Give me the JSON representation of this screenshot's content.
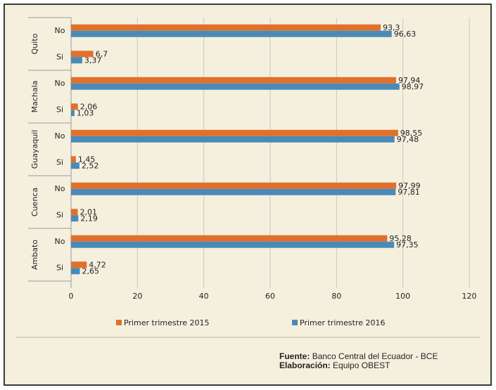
{
  "chart_data": {
    "type": "bar",
    "orientation": "horizontal",
    "groups": [
      "Quito",
      "Machala",
      "Guayaquil",
      "Cuenca",
      "Ambato"
    ],
    "categories": [
      "No",
      "Si",
      "No",
      "Si",
      "No",
      "Si",
      "No",
      "Si",
      "No",
      "Si"
    ],
    "series": [
      {
        "name": "Primer trimestre 2015",
        "color": "#e0702a",
        "values": [
          93.3,
          6.7,
          97.94,
          2.06,
          98.55,
          1.45,
          97.99,
          2.01,
          95.28,
          4.72
        ],
        "value_labels": [
          "93,3",
          "6,7",
          "97,94",
          "2,06",
          "98,55",
          "1,45",
          "97,99",
          "2,01",
          "95,28",
          "4,72"
        ]
      },
      {
        "name": "Primer trimestre 2016",
        "color": "#4a8ab8",
        "values": [
          96.63,
          3.37,
          98.97,
          1.03,
          97.48,
          2.52,
          97.81,
          2.19,
          97.35,
          2.65
        ],
        "value_labels": [
          "96,63",
          "3,37",
          "98,97",
          "1,03",
          "97,48",
          "2,52",
          "97,81",
          "2,19",
          "97,35",
          "2,65"
        ]
      }
    ],
    "xlim": [
      0,
      120
    ],
    "xticks": [
      0,
      20,
      40,
      60,
      80,
      100,
      120
    ],
    "grid": true,
    "source_label": "Fuente:",
    "source": "Banco Central del Ecuador - BCE",
    "credit_label": "Elaboración:",
    "credit": "Equipo OBEST"
  }
}
